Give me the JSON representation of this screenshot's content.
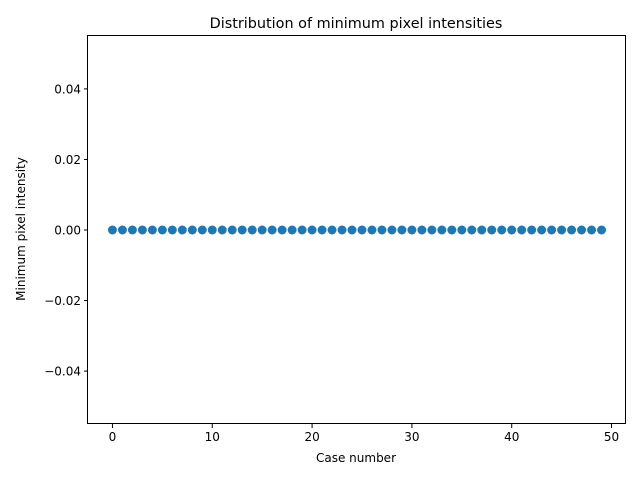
{
  "chart_data": {
    "type": "scatter",
    "title": "Distribution of minimum pixel intensities",
    "xlabel": "Case number",
    "ylabel": "Minimum pixel intensity",
    "xlim": [
      -2.45,
      51.45
    ],
    "ylim": [
      -0.055,
      0.055
    ],
    "x_ticks": [
      0,
      10,
      20,
      30,
      40,
      50
    ],
    "x_tick_labels": [
      "0",
      "10",
      "20",
      "30",
      "40",
      "50"
    ],
    "y_ticks": [
      -0.04,
      -0.02,
      0.0,
      0.02,
      0.04
    ],
    "y_tick_labels": [
      "−0.04",
      "−0.02",
      "0.00",
      "0.02",
      "0.04"
    ],
    "grid": false,
    "legend": "none",
    "marker_color": "#1f77b4",
    "series": [
      {
        "x": [
          0,
          1,
          2,
          3,
          4,
          5,
          6,
          7,
          8,
          9,
          10,
          11,
          12,
          13,
          14,
          15,
          16,
          17,
          18,
          19,
          20,
          21,
          22,
          23,
          24,
          25,
          26,
          27,
          28,
          29,
          30,
          31,
          32,
          33,
          34,
          35,
          36,
          37,
          38,
          39,
          40,
          41,
          42,
          43,
          44,
          45,
          46,
          47,
          48,
          49
        ],
        "y": [
          0,
          0,
          0,
          0,
          0,
          0,
          0,
          0,
          0,
          0,
          0,
          0,
          0,
          0,
          0,
          0,
          0,
          0,
          0,
          0,
          0,
          0,
          0,
          0,
          0,
          0,
          0,
          0,
          0,
          0,
          0,
          0,
          0,
          0,
          0,
          0,
          0,
          0,
          0,
          0,
          0,
          0,
          0,
          0,
          0,
          0,
          0,
          0,
          0,
          0
        ]
      }
    ]
  }
}
